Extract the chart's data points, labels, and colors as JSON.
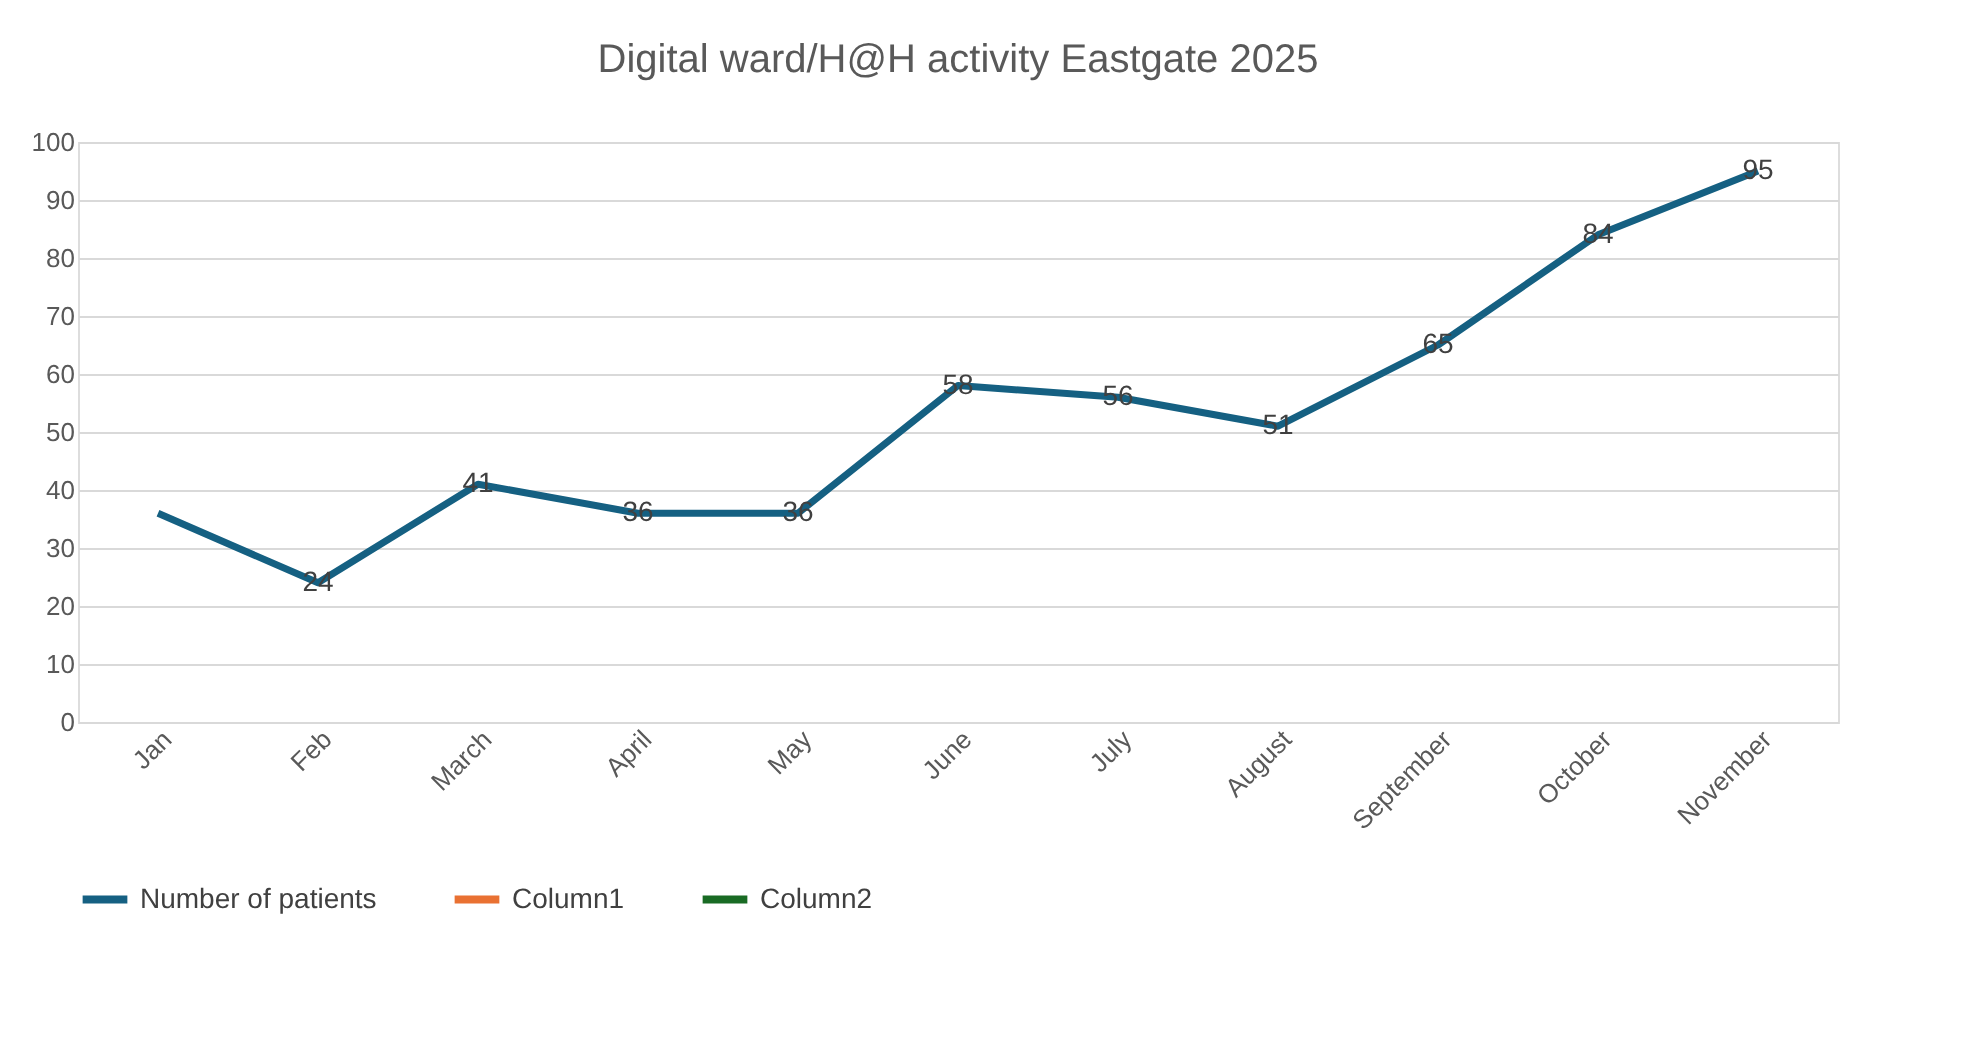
{
  "chart_data": {
    "type": "line",
    "title": "Digital ward/H@H activity Eastgate 2025",
    "categories": [
      "Jan",
      "Feb",
      "March",
      "April",
      "May",
      "June",
      "July",
      "August",
      "September",
      "October",
      "November"
    ],
    "series": [
      {
        "name": "Number of patients",
        "color": "#156082",
        "values": [
          36,
          24,
          41,
          36,
          36,
          58,
          56,
          51,
          65,
          84,
          95
        ],
        "value_labels": [
          null,
          "24",
          "41",
          "36",
          "36",
          "58",
          "56",
          "51",
          "65",
          "84",
          "95"
        ]
      },
      {
        "name": "Column1",
        "color": "#e97132",
        "values": [
          null,
          null,
          null,
          null,
          null,
          null,
          null,
          null,
          null,
          null,
          null
        ]
      },
      {
        "name": "Column2",
        "color": "#196b24",
        "values": [
          null,
          null,
          null,
          null,
          null,
          null,
          null,
          null,
          null,
          null,
          null
        ]
      }
    ],
    "ylim": [
      0,
      100
    ],
    "yticks": [
      0,
      10,
      20,
      30,
      40,
      50,
      60,
      70,
      80,
      90,
      100
    ],
    "grid": "y",
    "legend": "bottom",
    "marker": "none",
    "line_style": "solid"
  }
}
